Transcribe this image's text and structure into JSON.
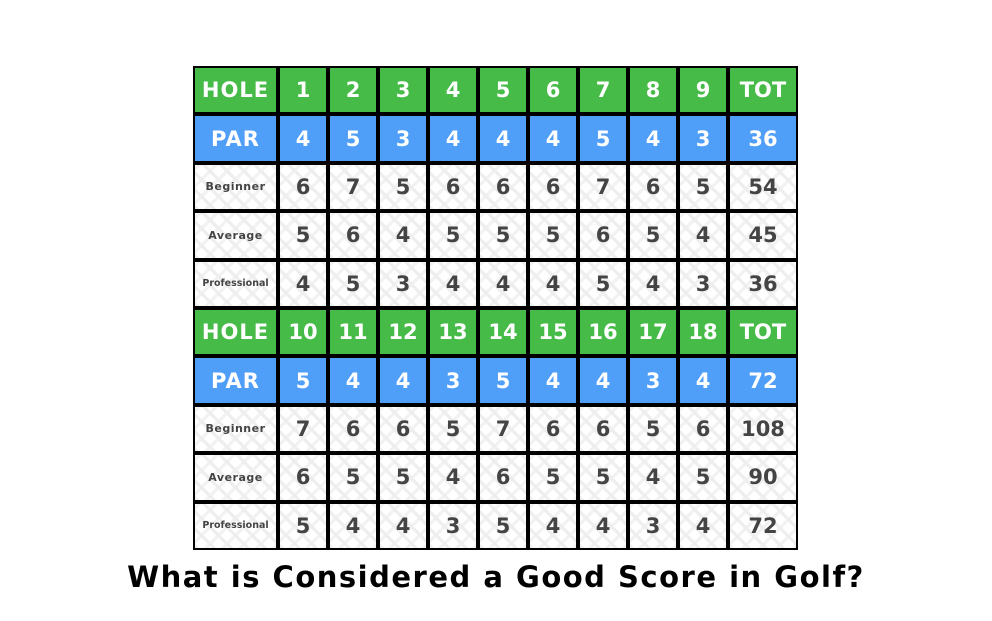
{
  "colors": {
    "hole_row": "#46bb48",
    "par_row": "#4f9ef8",
    "score_text": "#444444"
  },
  "title": "What is Considered a Good Score in Golf?",
  "sections": [
    {
      "hole": {
        "label": "HOLE",
        "values": [
          "1",
          "2",
          "3",
          "4",
          "5",
          "6",
          "7",
          "8",
          "9"
        ],
        "total": "TOT"
      },
      "par": {
        "label": "PAR",
        "values": [
          "4",
          "5",
          "3",
          "4",
          "4",
          "4",
          "5",
          "4",
          "3"
        ],
        "total": "36"
      },
      "rows": [
        {
          "label": "Beginner",
          "values": [
            "6",
            "7",
            "5",
            "6",
            "6",
            "6",
            "7",
            "6",
            "5"
          ],
          "total": "54"
        },
        {
          "label": "Average",
          "values": [
            "5",
            "6",
            "4",
            "5",
            "5",
            "5",
            "6",
            "5",
            "4"
          ],
          "total": "45"
        },
        {
          "label": "Professional",
          "values": [
            "4",
            "5",
            "3",
            "4",
            "4",
            "4",
            "5",
            "4",
            "3"
          ],
          "total": "36"
        }
      ]
    },
    {
      "hole": {
        "label": "HOLE",
        "values": [
          "10",
          "11",
          "12",
          "13",
          "14",
          "15",
          "16",
          "17",
          "18"
        ],
        "total": "TOT"
      },
      "par": {
        "label": "PAR",
        "values": [
          "5",
          "4",
          "4",
          "3",
          "5",
          "4",
          "4",
          "3",
          "4"
        ],
        "total": "72"
      },
      "rows": [
        {
          "label": "Beginner",
          "values": [
            "7",
            "6",
            "6",
            "5",
            "7",
            "6",
            "6",
            "5",
            "6"
          ],
          "total": "108"
        },
        {
          "label": "Average",
          "values": [
            "6",
            "5",
            "5",
            "4",
            "6",
            "5",
            "5",
            "4",
            "5"
          ],
          "total": "90"
        },
        {
          "label": "Professional",
          "values": [
            "5",
            "4",
            "4",
            "3",
            "5",
            "4",
            "4",
            "3",
            "4"
          ],
          "total": "72"
        }
      ]
    }
  ]
}
